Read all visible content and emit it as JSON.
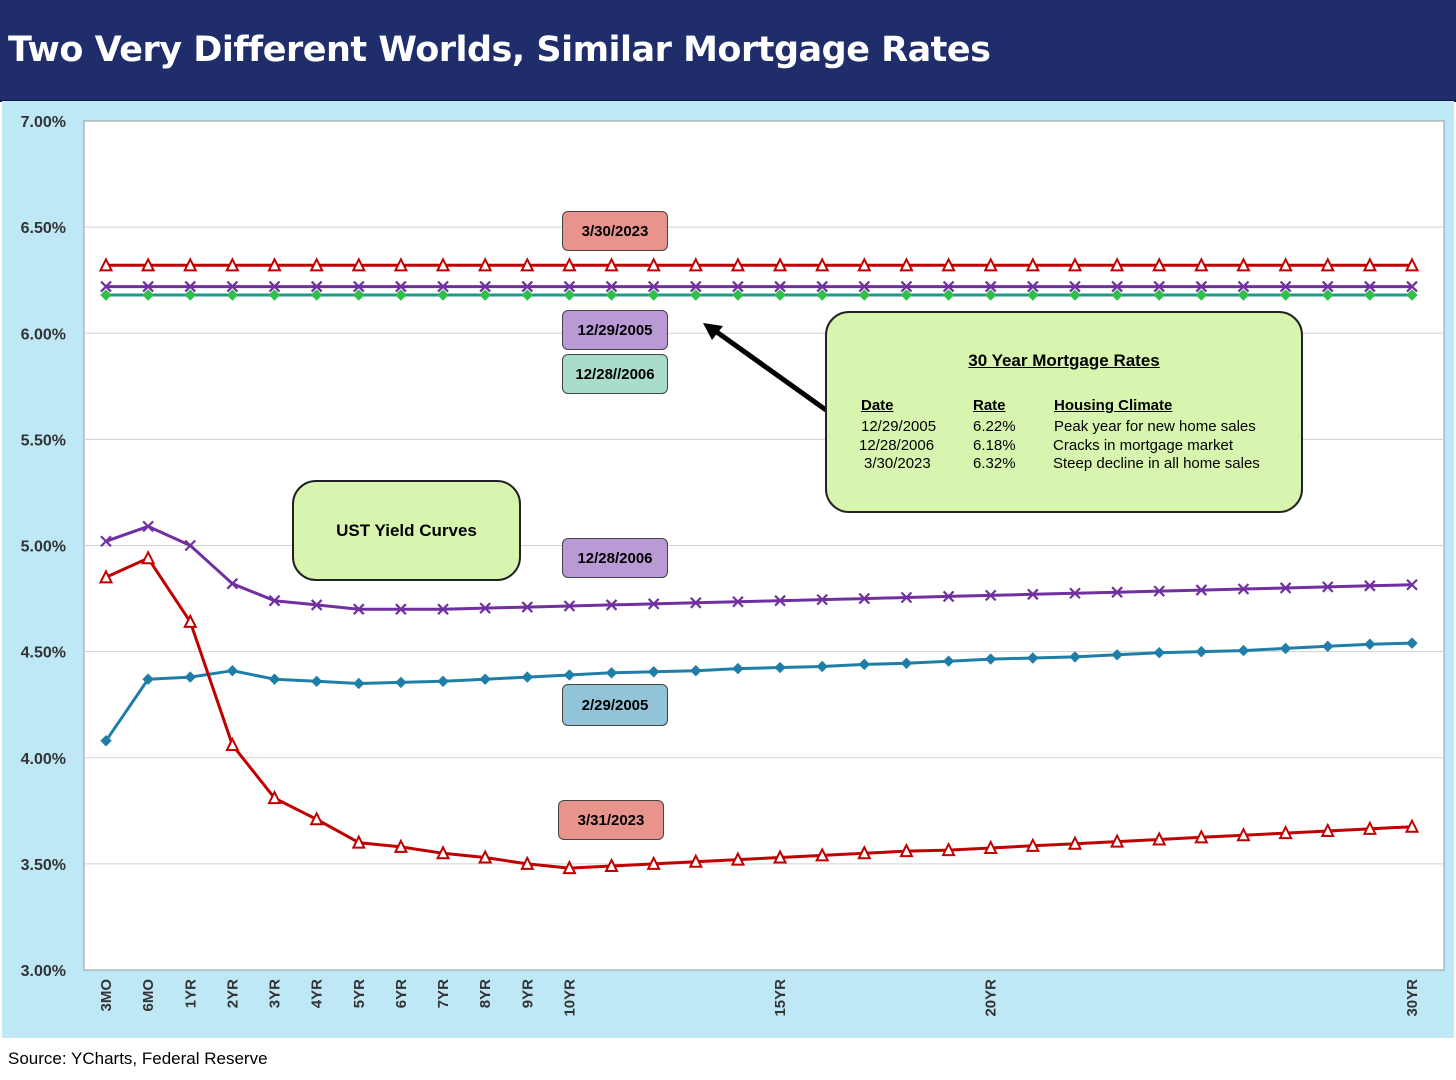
{
  "title": "Two Very Different Worlds, Similar Mortgage Rates",
  "source": "Source: YCharts, Federal Reserve",
  "chart_data": {
    "type": "line",
    "y_axis": {
      "min": 3.0,
      "max": 7.0,
      "ticks": [
        "3.00%",
        "3.50%",
        "4.00%",
        "4.50%",
        "5.00%",
        "5.50%",
        "6.00%",
        "6.50%",
        "7.00%"
      ]
    },
    "x_tick_labels": [
      "3MO",
      "6MO",
      "1YR",
      "2YR",
      "3YR",
      "4YR",
      "5YR",
      "6YR",
      "7YR",
      "8YR",
      "9YR",
      "10YR",
      "",
      "",
      "",
      "",
      "15YR",
      "",
      "",
      "",
      "",
      "20YR",
      "",
      "",
      "",
      "",
      "",
      "",
      "",
      "",
      "",
      "30YR"
    ],
    "grid": "horizontal",
    "series": [
      {
        "name": "3/30/2023",
        "kind": "mortgage",
        "color": "#c00000",
        "marker": "triangle",
        "values": [
          6.32,
          6.32,
          6.32,
          6.32,
          6.32,
          6.32,
          6.32,
          6.32,
          6.32,
          6.32,
          6.32,
          6.32,
          6.32,
          6.32,
          6.32,
          6.32,
          6.32,
          6.32,
          6.32,
          6.32,
          6.32,
          6.32,
          6.32,
          6.32,
          6.32,
          6.32,
          6.32,
          6.32,
          6.32,
          6.32,
          6.32,
          6.32
        ]
      },
      {
        "name": "12/29/2005",
        "kind": "mortgage",
        "color": "#7030a0",
        "marker": "x",
        "values": [
          6.22,
          6.22,
          6.22,
          6.22,
          6.22,
          6.22,
          6.22,
          6.22,
          6.22,
          6.22,
          6.22,
          6.22,
          6.22,
          6.22,
          6.22,
          6.22,
          6.22,
          6.22,
          6.22,
          6.22,
          6.22,
          6.22,
          6.22,
          6.22,
          6.22,
          6.22,
          6.22,
          6.22,
          6.22,
          6.22,
          6.22,
          6.22
        ]
      },
      {
        "name": "12/28//2006",
        "kind": "mortgage",
        "color": "#1a9c8c",
        "marker": "diamond",
        "values": [
          6.18,
          6.18,
          6.18,
          6.18,
          6.18,
          6.18,
          6.18,
          6.18,
          6.18,
          6.18,
          6.18,
          6.18,
          6.18,
          6.18,
          6.18,
          6.18,
          6.18,
          6.18,
          6.18,
          6.18,
          6.18,
          6.18,
          6.18,
          6.18,
          6.18,
          6.18,
          6.18,
          6.18,
          6.18,
          6.18,
          6.18,
          6.18
        ]
      },
      {
        "name": "12/28/2006",
        "kind": "ust",
        "color": "#7030a0",
        "marker": "x",
        "values": [
          5.02,
          5.09,
          5.0,
          4.82,
          4.74,
          4.72,
          4.7,
          4.7,
          4.7,
          4.705,
          4.71,
          4.715,
          4.72,
          4.725,
          4.73,
          4.735,
          4.74,
          4.745,
          4.75,
          4.755,
          4.76,
          4.765,
          4.77,
          4.775,
          4.78,
          4.785,
          4.79,
          4.795,
          4.8,
          4.805,
          4.81,
          4.815
        ]
      },
      {
        "name": "2/29/2005",
        "kind": "ust",
        "color": "#1f7ea8",
        "marker": "diamond",
        "values": [
          4.08,
          4.37,
          4.38,
          4.41,
          4.37,
          4.36,
          4.35,
          4.355,
          4.36,
          4.37,
          4.38,
          4.39,
          4.4,
          4.405,
          4.41,
          4.42,
          4.425,
          4.43,
          4.44,
          4.445,
          4.455,
          4.465,
          4.47,
          4.475,
          4.485,
          4.495,
          4.5,
          4.505,
          4.515,
          4.525,
          4.535,
          4.54
        ]
      },
      {
        "name": "3/31/2023",
        "kind": "ust",
        "color": "#c00000",
        "marker": "triangle",
        "values": [
          4.85,
          4.94,
          4.64,
          4.06,
          3.81,
          3.71,
          3.6,
          3.58,
          3.55,
          3.53,
          3.5,
          3.48,
          3.49,
          3.5,
          3.51,
          3.52,
          3.53,
          3.54,
          3.55,
          3.56,
          3.565,
          3.575,
          3.585,
          3.595,
          3.605,
          3.615,
          3.625,
          3.635,
          3.645,
          3.655,
          3.665,
          3.675
        ]
      }
    ],
    "series_labels": [
      {
        "text": "3/30/2023",
        "fill": "#e8938b"
      },
      {
        "text": "12/29/2005",
        "fill": "#b99ad6"
      },
      {
        "text": "12/28//2006",
        "fill": "#a9dccb"
      },
      {
        "text": "12/28/2006",
        "fill": "#b99ad6"
      },
      {
        "text": "2/29/2005",
        "fill": "#93c3d8"
      },
      {
        "text": "3/31/2023",
        "fill": "#e8938b"
      }
    ]
  },
  "annotations": {
    "ust_label": "UST Yield Curves",
    "mortgage_table": {
      "title": "30 Year Mortgage Rates",
      "headers": [
        "Date",
        "Rate",
        "Housing Climate"
      ],
      "rows": [
        [
          "12/29/2005",
          "6.22%",
          "Peak year for new home sales"
        ],
        [
          "12/28/2006",
          "6.18%",
          "Cracks in mortgage market"
        ],
        [
          "3/30/2023",
          "6.32%",
          "Steep decline in all home sales"
        ]
      ]
    }
  }
}
